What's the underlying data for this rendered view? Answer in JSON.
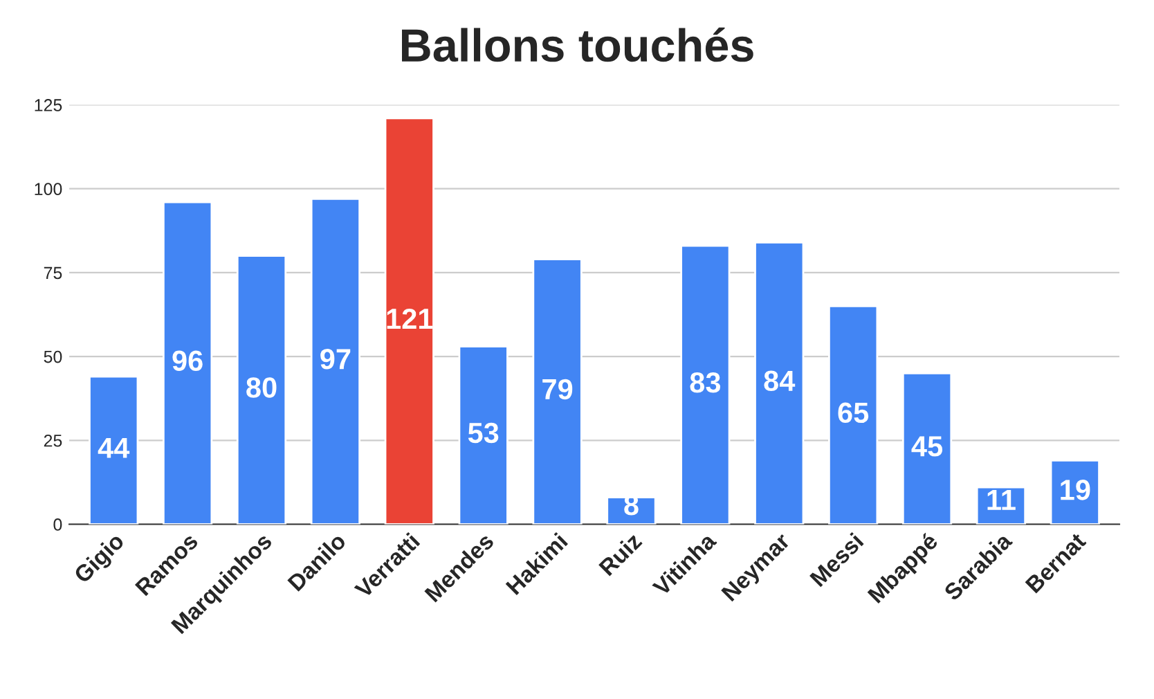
{
  "chart_data": {
    "type": "bar",
    "title": "Ballons touchés",
    "categories": [
      "Gigio",
      "Ramos",
      "Marquinhos",
      "Danilo",
      "Verratti",
      "Mendes",
      "Hakimi",
      "Ruiz",
      "Vitinha",
      "Neymar",
      "Messi",
      "Mbappé",
      "Sarabia",
      "Bernat"
    ],
    "values": [
      44,
      96,
      80,
      97,
      121,
      53,
      79,
      8,
      83,
      84,
      65,
      45,
      11,
      19
    ],
    "colors": [
      "#4285f4",
      "#4285f4",
      "#4285f4",
      "#4285f4",
      "#ea4335",
      "#4285f4",
      "#4285f4",
      "#4285f4",
      "#4285f4",
      "#4285f4",
      "#4285f4",
      "#4285f4",
      "#4285f4",
      "#4285f4"
    ],
    "ylim": [
      0,
      125
    ],
    "yticks": [
      0,
      25,
      50,
      75,
      100,
      125
    ],
    "grid": "y",
    "data_labels": true
  }
}
